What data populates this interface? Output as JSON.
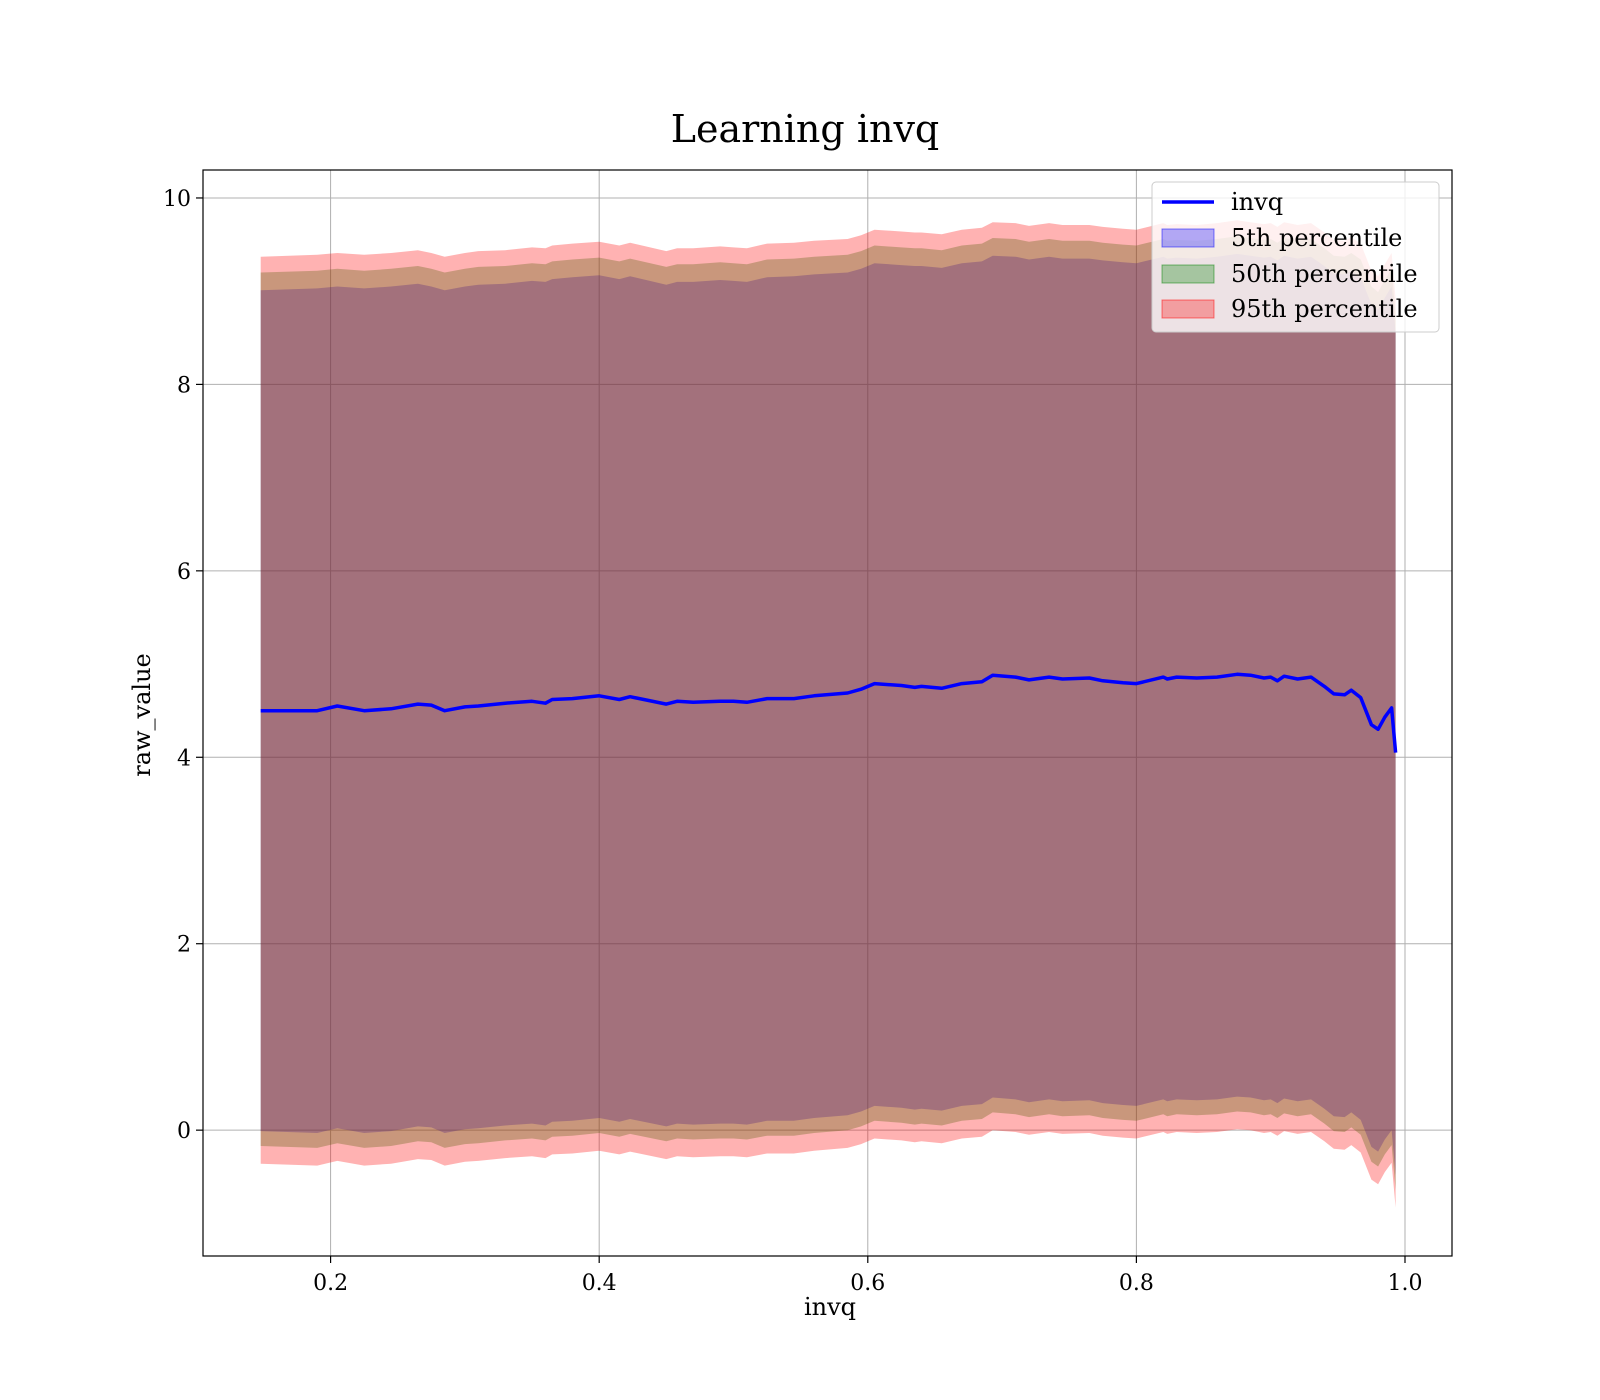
{
  "chart_data": {
    "type": "line",
    "title": "Learning invq",
    "xlabel": "invq",
    "ylabel": "raw_value",
    "xlim": [
      0.105,
      1.035
    ],
    "ylim": [
      -1.35,
      10.3
    ],
    "xticks": [
      0.2,
      0.4,
      0.6,
      0.8,
      1.0
    ],
    "xtick_labels": [
      "0.2",
      "0.4",
      "0.6",
      "0.8",
      "1.0"
    ],
    "yticks": [
      0,
      2,
      4,
      6,
      8,
      10
    ],
    "ytick_labels": [
      "0",
      "2",
      "4",
      "6",
      "8",
      "10"
    ],
    "grid": true,
    "legend_position": "top-right",
    "x": [
      0.148,
      0.19,
      0.205,
      0.225,
      0.245,
      0.265,
      0.275,
      0.285,
      0.3,
      0.31,
      0.33,
      0.35,
      0.36,
      0.365,
      0.38,
      0.4,
      0.415,
      0.423,
      0.45,
      0.458,
      0.47,
      0.49,
      0.5,
      0.51,
      0.525,
      0.545,
      0.56,
      0.585,
      0.595,
      0.605,
      0.625,
      0.635,
      0.64,
      0.655,
      0.67,
      0.685,
      0.693,
      0.71,
      0.72,
      0.735,
      0.745,
      0.765,
      0.775,
      0.79,
      0.8,
      0.82,
      0.823,
      0.83,
      0.845,
      0.86,
      0.875,
      0.885,
      0.895,
      0.9,
      0.905,
      0.91,
      0.92,
      0.93,
      0.94,
      0.947,
      0.955,
      0.96,
      0.967,
      0.975,
      0.98,
      0.985,
      0.99,
      0.993
    ],
    "series": [
      {
        "name": "invq",
        "color": "#0000ff",
        "values": [
          4.5,
          4.5,
          4.55,
          4.5,
          4.52,
          4.57,
          4.56,
          4.5,
          4.54,
          4.55,
          4.58,
          4.6,
          4.58,
          4.62,
          4.63,
          4.66,
          4.62,
          4.65,
          4.57,
          4.6,
          4.59,
          4.6,
          4.6,
          4.59,
          4.63,
          4.63,
          4.66,
          4.69,
          4.73,
          4.79,
          4.77,
          4.75,
          4.76,
          4.74,
          4.79,
          4.81,
          4.88,
          4.86,
          4.83,
          4.86,
          4.84,
          4.85,
          4.82,
          4.8,
          4.79,
          4.86,
          4.84,
          4.86,
          4.85,
          4.86,
          4.89,
          4.88,
          4.85,
          4.86,
          4.82,
          4.87,
          4.84,
          4.86,
          4.76,
          4.68,
          4.67,
          4.72,
          4.64,
          4.35,
          4.3,
          4.43,
          4.53,
          4.05
        ]
      }
    ],
    "bands": [
      {
        "name": "5th percentile",
        "color": "#0000ff",
        "opacity": 0.3,
        "upper": [
          9.01,
          9.03,
          9.05,
          9.03,
          9.05,
          9.08,
          9.05,
          9.01,
          9.05,
          9.07,
          9.08,
          9.11,
          9.1,
          9.13,
          9.15,
          9.17,
          9.13,
          9.16,
          9.07,
          9.1,
          9.1,
          9.12,
          9.11,
          9.1,
          9.15,
          9.16,
          9.18,
          9.2,
          9.24,
          9.3,
          9.28,
          9.27,
          9.27,
          9.25,
          9.3,
          9.32,
          9.38,
          9.37,
          9.34,
          9.37,
          9.35,
          9.35,
          9.33,
          9.31,
          9.3,
          9.37,
          9.35,
          9.36,
          9.35,
          9.37,
          9.4,
          9.38,
          9.36,
          9.37,
          9.33,
          9.38,
          9.35,
          9.37,
          9.27,
          9.19,
          9.18,
          9.22,
          9.15,
          8.86,
          8.8,
          8.93,
          9.05,
          8.56
        ],
        "lower": [
          -0.01,
          -0.03,
          0.02,
          -0.03,
          -0.01,
          0.04,
          0.03,
          -0.03,
          0.01,
          0.02,
          0.05,
          0.07,
          0.05,
          0.09,
          0.1,
          0.13,
          0.09,
          0.12,
          0.04,
          0.07,
          0.06,
          0.07,
          0.07,
          0.06,
          0.1,
          0.1,
          0.13,
          0.16,
          0.2,
          0.26,
          0.24,
          0.22,
          0.23,
          0.21,
          0.26,
          0.28,
          0.35,
          0.33,
          0.3,
          0.33,
          0.31,
          0.32,
          0.29,
          0.27,
          0.26,
          0.33,
          0.31,
          0.33,
          0.32,
          0.33,
          0.36,
          0.35,
          0.32,
          0.33,
          0.29,
          0.34,
          0.31,
          0.33,
          0.23,
          0.15,
          0.14,
          0.19,
          0.11,
          -0.18,
          -0.23,
          -0.1,
          0.0,
          -0.48
        ]
      },
      {
        "name": "50th percentile",
        "color": "#008000",
        "opacity": 0.3,
        "upper": [
          9.2,
          9.22,
          9.24,
          9.22,
          9.24,
          9.27,
          9.24,
          9.2,
          9.24,
          9.26,
          9.27,
          9.3,
          9.29,
          9.32,
          9.34,
          9.36,
          9.32,
          9.35,
          9.26,
          9.29,
          9.29,
          9.31,
          9.3,
          9.29,
          9.34,
          9.35,
          9.37,
          9.39,
          9.43,
          9.49,
          9.47,
          9.46,
          9.46,
          9.44,
          9.49,
          9.51,
          9.57,
          9.56,
          9.53,
          9.56,
          9.54,
          9.54,
          9.52,
          9.5,
          9.49,
          9.56,
          9.54,
          9.55,
          9.54,
          9.56,
          9.59,
          9.57,
          9.55,
          9.56,
          9.52,
          9.57,
          9.54,
          9.56,
          9.46,
          9.38,
          9.37,
          9.41,
          9.34,
          9.05,
          8.99,
          9.12,
          9.24,
          8.75
        ],
        "lower": [
          -0.17,
          -0.19,
          -0.14,
          -0.19,
          -0.17,
          -0.12,
          -0.13,
          -0.19,
          -0.15,
          -0.14,
          -0.11,
          -0.09,
          -0.11,
          -0.07,
          -0.06,
          -0.03,
          -0.07,
          -0.04,
          -0.12,
          -0.09,
          -0.1,
          -0.09,
          -0.09,
          -0.1,
          -0.06,
          -0.06,
          -0.03,
          0.0,
          0.04,
          0.1,
          0.08,
          0.06,
          0.07,
          0.05,
          0.1,
          0.12,
          0.19,
          0.17,
          0.14,
          0.17,
          0.15,
          0.16,
          0.13,
          0.11,
          0.1,
          0.17,
          0.15,
          0.17,
          0.16,
          0.17,
          0.2,
          0.19,
          0.16,
          0.17,
          0.13,
          0.18,
          0.15,
          0.17,
          0.07,
          -0.01,
          -0.02,
          0.03,
          -0.05,
          -0.34,
          -0.39,
          -0.26,
          -0.16,
          -0.64
        ]
      },
      {
        "name": "95th percentile",
        "color": "#ff0000",
        "opacity": 0.3,
        "upper": [
          9.37,
          9.39,
          9.41,
          9.39,
          9.41,
          9.44,
          9.41,
          9.37,
          9.41,
          9.43,
          9.44,
          9.47,
          9.46,
          9.49,
          9.51,
          9.53,
          9.49,
          9.52,
          9.43,
          9.46,
          9.46,
          9.48,
          9.47,
          9.46,
          9.51,
          9.52,
          9.54,
          9.56,
          9.6,
          9.66,
          9.64,
          9.63,
          9.63,
          9.61,
          9.66,
          9.68,
          9.74,
          9.73,
          9.7,
          9.73,
          9.71,
          9.71,
          9.69,
          9.67,
          9.66,
          9.73,
          9.71,
          9.72,
          9.71,
          9.73,
          9.76,
          9.74,
          9.72,
          9.73,
          9.69,
          9.74,
          9.71,
          9.73,
          9.63,
          9.55,
          9.54,
          9.58,
          9.51,
          9.22,
          9.16,
          9.29,
          9.41,
          8.92
        ],
        "lower": [
          -0.36,
          -0.38,
          -0.33,
          -0.38,
          -0.36,
          -0.31,
          -0.32,
          -0.38,
          -0.34,
          -0.33,
          -0.3,
          -0.28,
          -0.3,
          -0.26,
          -0.25,
          -0.22,
          -0.26,
          -0.23,
          -0.31,
          -0.28,
          -0.29,
          -0.28,
          -0.28,
          -0.29,
          -0.25,
          -0.25,
          -0.22,
          -0.19,
          -0.15,
          -0.09,
          -0.11,
          -0.13,
          -0.12,
          -0.14,
          -0.09,
          -0.07,
          0.0,
          -0.02,
          -0.05,
          -0.02,
          -0.04,
          -0.03,
          -0.06,
          -0.08,
          -0.09,
          -0.02,
          -0.04,
          -0.02,
          -0.03,
          -0.02,
          0.01,
          0.0,
          -0.03,
          -0.02,
          -0.06,
          -0.01,
          -0.04,
          -0.02,
          -0.12,
          -0.2,
          -0.21,
          -0.16,
          -0.24,
          -0.53,
          -0.58,
          -0.45,
          -0.35,
          -0.83
        ]
      }
    ]
  }
}
